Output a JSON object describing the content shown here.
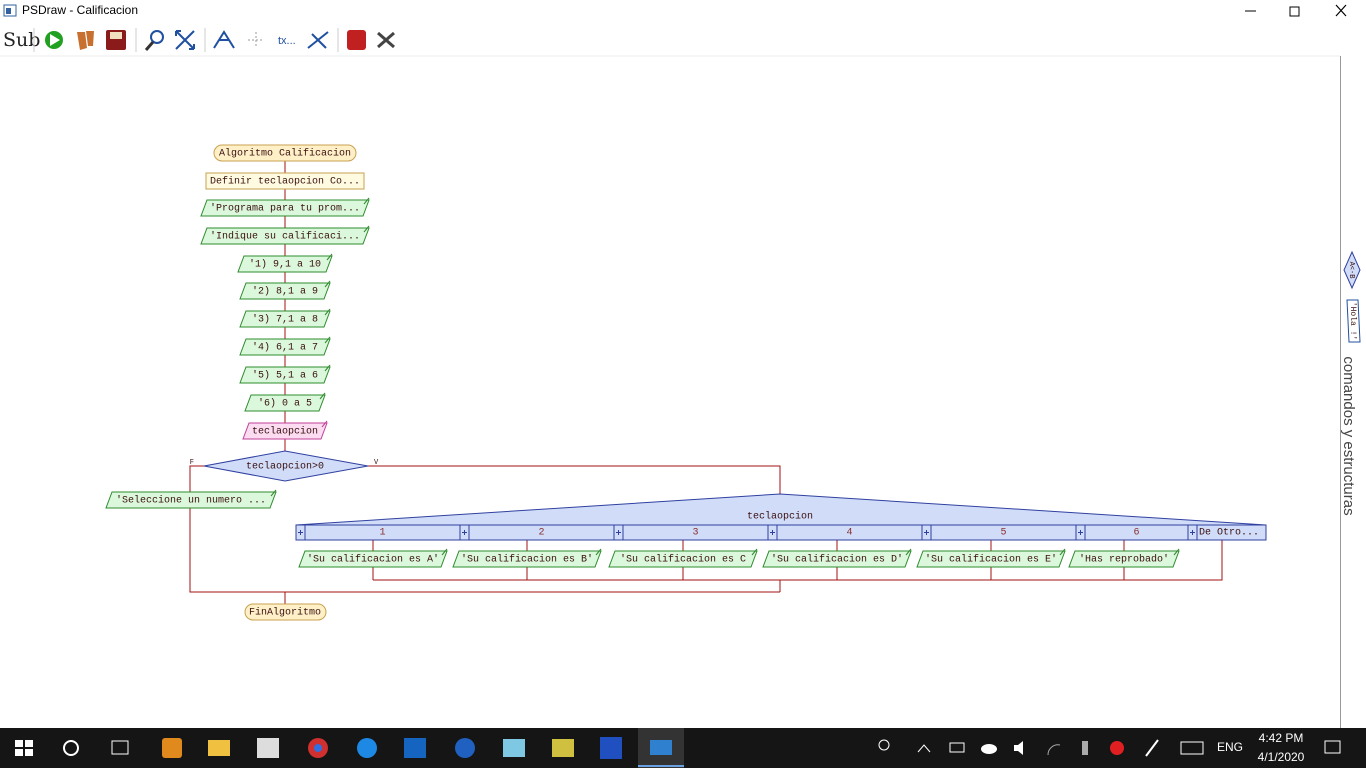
{
  "window": {
    "title": "PSDraw - Calificacion"
  },
  "toolbar": {
    "sub": "Sub",
    "text_tool": "tx..."
  },
  "flowchart": {
    "start": "Algoritmo Calificacion",
    "definition": "Definir teclaopcion Co...",
    "outputs": [
      "'Programa para tu prom...",
      "'Indique su calificaci...",
      "'1) 9,1 a 10",
      "'2) 8,1 a 9",
      "'3) 7,1 a 8",
      "'4) 6,1 a 7",
      "'5) 5,1 a 6",
      "'6) 0 a 5"
    ],
    "input": "teclaopcion",
    "decision": {
      "label": "teclaopcion>0",
      "false_label": "F",
      "true_label": "V",
      "false_step": "'Seleccione un numero ..."
    },
    "switch": {
      "label": "teclaopcion",
      "cases": [
        {
          "value": "1",
          "output": "'Su calificacion es A'"
        },
        {
          "value": "2",
          "output": "'Su calificacion es B'"
        },
        {
          "value": "3",
          "output": "'Su calificacion es C"
        },
        {
          "value": "4",
          "output": "'Su calificacion es D'"
        },
        {
          "value": "5",
          "output": "'Su calificacion es E'"
        },
        {
          "value": "6",
          "output": "'Has reprobado'"
        }
      ],
      "default": "De Otro..."
    },
    "end": "FinAlgoritmo"
  },
  "side_panel": {
    "title": "comandos y estructuras",
    "items": [
      "A<-B",
      "'Hola !'"
    ]
  },
  "taskbar": {
    "language": "ENG",
    "time": "4:42 PM",
    "date": "4/1/2020"
  }
}
